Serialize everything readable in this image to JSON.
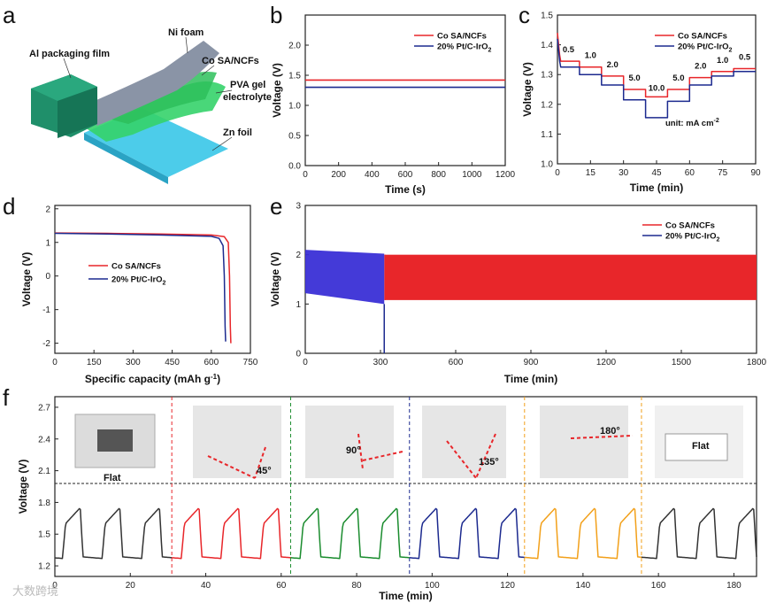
{
  "panel_labels": {
    "a": "a",
    "b": "b",
    "c": "c",
    "d": "d",
    "e": "e",
    "f": "f"
  },
  "schematic": {
    "labels": {
      "al": "Al packaging film",
      "ni": "Ni foam",
      "co": "Co SA/NCFs",
      "pva1": "PVA gel",
      "pva2": "electrolyte",
      "zn": "Zn foil"
    },
    "colors": {
      "al": "#1f8f6a",
      "ni": "#8a94a6",
      "pva": "#35d36a",
      "zn": "#39c6e8"
    }
  },
  "legend": {
    "co": "Co SA/NCFs",
    "pt_prefix": "20% Pt/C-IrO",
    "pt_sub": "2"
  },
  "series_colors": {
    "co": "#e8262a",
    "pt": "#1c2a8f",
    "f_colors": [
      "#333333",
      "#e8262a",
      "#1a8c2e",
      "#1c2a8f",
      "#f2a01a",
      "#333333"
    ]
  },
  "photos": {
    "flat1": "Flat",
    "a45": "45°",
    "a90": "90°",
    "a135": "135°",
    "a180": "180°",
    "flat2": "Flat"
  },
  "watermark": "大数跨境",
  "chart_data": [
    {
      "id": "b",
      "type": "line",
      "xlabel": "Time (s)",
      "ylabel": "Voltage (V)",
      "xlim": [
        0,
        1200
      ],
      "ylim": [
        0,
        2.5
      ],
      "xticks": [
        0,
        200,
        400,
        600,
        800,
        1000,
        1200
      ],
      "yticks": [
        0.0,
        0.5,
        1.0,
        1.5,
        2.0
      ],
      "ytick_labels": [
        "0.0",
        "0.5",
        "1.0",
        "1.5",
        "2.0"
      ],
      "series": [
        {
          "name": "Co SA/NCFs",
          "key": "co",
          "x": [
            0,
            1200
          ],
          "y": [
            1.42,
            1.42
          ]
        },
        {
          "name": "20% Pt/C-IrO2",
          "key": "pt",
          "x": [
            0,
            1200
          ],
          "y": [
            1.3,
            1.3
          ]
        }
      ]
    },
    {
      "id": "c",
      "type": "line",
      "xlabel": "Time (min)",
      "ylabel": "Voltage (V)",
      "xlim": [
        0,
        90
      ],
      "ylim": [
        1.0,
        1.5
      ],
      "xticks": [
        0,
        15,
        30,
        45,
        60,
        75,
        90
      ],
      "yticks": [
        1.0,
        1.1,
        1.2,
        1.3,
        1.4,
        1.5
      ],
      "ytick_labels": [
        "1.0",
        "1.1",
        "1.2",
        "1.3",
        "1.4",
        "1.5"
      ],
      "current_densities": [
        "0.5",
        "1.0",
        "2.0",
        "5.0",
        "10.0",
        "5.0",
        "2.0",
        "1.0",
        "0.5"
      ],
      "unit_note": "unit: mA cm",
      "unit_sup": "-2",
      "series": [
        {
          "name": "Co SA/NCFs",
          "key": "co",
          "steps": [
            1.345,
            1.325,
            1.295,
            1.25,
            1.225,
            1.25,
            1.29,
            1.31,
            1.32
          ]
        },
        {
          "name": "20% Pt/C-IrO2",
          "key": "pt",
          "steps": [
            1.325,
            1.3,
            1.265,
            1.215,
            1.155,
            1.21,
            1.265,
            1.295,
            1.31
          ]
        }
      ]
    },
    {
      "id": "d",
      "type": "line",
      "xlabel": "Specific capacity (mAh g",
      "xlabel_sup": "-1",
      "xlabel_end": ")",
      "ylabel": "Voltage (V)",
      "xlim": [
        0,
        750
      ],
      "ylim": [
        -2.3,
        2.1
      ],
      "xticks": [
        0,
        150,
        300,
        450,
        600,
        750
      ],
      "yticks": [
        -2,
        -1,
        0,
        1,
        2
      ],
      "ytick_labels": [
        "-2",
        "-1",
        "0",
        "1",
        "2"
      ],
      "series": [
        {
          "name": "Co SA/NCFs",
          "key": "co",
          "x": [
            0,
            200,
            400,
            600,
            650,
            665,
            670,
            673,
            675
          ],
          "y": [
            1.28,
            1.27,
            1.25,
            1.22,
            1.17,
            1.0,
            0.0,
            -1.5,
            -2.0
          ]
        },
        {
          "name": "20% Pt/C-IrO2",
          "key": "pt",
          "x": [
            0,
            200,
            400,
            600,
            630,
            645,
            650,
            653,
            655
          ],
          "y": [
            1.27,
            1.25,
            1.22,
            1.18,
            1.12,
            0.9,
            0.0,
            -1.5,
            -1.95
          ]
        }
      ]
    },
    {
      "id": "e",
      "type": "area",
      "xlabel": "Time (min)",
      "ylabel": "Voltage (V)",
      "xlim": [
        0,
        1800
      ],
      "ylim": [
        0,
        3
      ],
      "xticks": [
        0,
        300,
        600,
        900,
        1200,
        1500,
        1800
      ],
      "yticks": [
        0,
        1,
        2,
        3
      ],
      "ytick_labels": [
        "0",
        "1",
        "2",
        "3"
      ],
      "series": [
        {
          "name": "Co SA/NCFs",
          "key": "co",
          "x_range": [
            0,
            1800
          ],
          "upper": 2.0,
          "lower": 1.08
        },
        {
          "name": "20% Pt/C-IrO2",
          "key": "pt",
          "x_range": [
            0,
            315
          ],
          "upper_start": 2.1,
          "upper_end": 2.02,
          "lower_start": 1.22,
          "lower_end": 1.0,
          "failure_x": 315
        }
      ]
    },
    {
      "id": "f",
      "type": "line",
      "xlabel": "Time (min)",
      "ylabel": "Voltage (V)",
      "xlim": [
        0,
        186
      ],
      "ylim": [
        1.1,
        2.8
      ],
      "xticks": [
        0,
        20,
        40,
        60,
        80,
        100,
        120,
        140,
        160,
        180
      ],
      "yticks": [
        1.2,
        1.5,
        1.8,
        2.1,
        2.4,
        2.7
      ],
      "ytick_labels": [
        "1.2",
        "1.5",
        "1.8",
        "2.1",
        "2.4",
        "2.7"
      ],
      "segment_boundaries": [
        31,
        62.5,
        94,
        124.5,
        155.5
      ],
      "cycle": {
        "period": 10.5,
        "charge_high": 1.75,
        "discharge_low": 1.27
      },
      "segments": [
        {
          "label": "Flat",
          "x_range": [
            0,
            31
          ]
        },
        {
          "label": "45°",
          "x_range": [
            31,
            62.5
          ]
        },
        {
          "label": "90°",
          "x_range": [
            62.5,
            94
          ]
        },
        {
          "label": "135°",
          "x_range": [
            94,
            124.5
          ]
        },
        {
          "label": "180°",
          "x_range": [
            124.5,
            155.5
          ]
        },
        {
          "label": "Flat",
          "x_range": [
            155.5,
            186
          ]
        }
      ]
    }
  ]
}
